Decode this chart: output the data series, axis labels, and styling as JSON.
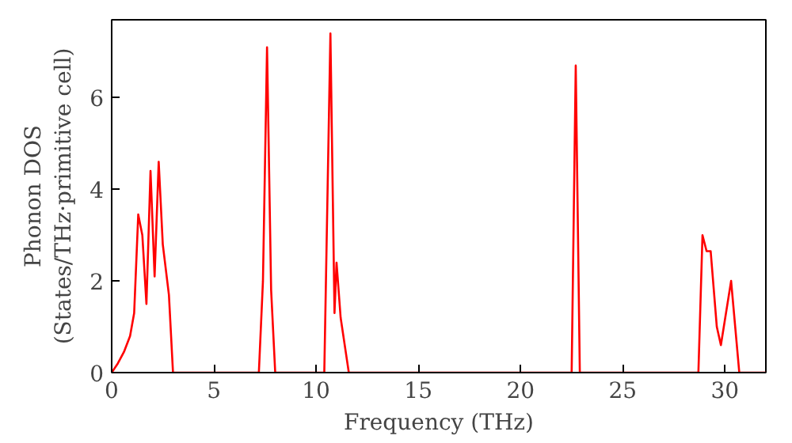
{
  "chart_data": {
    "type": "line",
    "xlabel": "Frequency (THz)",
    "ylabel": "Phonon DOS\n(States/THz·primitive cell)",
    "xlim": [
      0,
      32
    ],
    "ylim": [
      0,
      7.7
    ],
    "xticks": [
      0,
      5,
      10,
      15,
      20,
      25,
      30
    ],
    "yticks": [
      0,
      2,
      4,
      6
    ],
    "grid": false,
    "series": [
      {
        "color": "#ff0000",
        "x": [
          0,
          0.3,
          0.6,
          0.9,
          1.1,
          1.3,
          1.5,
          1.7,
          1.9,
          2.1,
          2.3,
          2.5,
          2.8,
          3.0,
          7.2,
          7.4,
          7.6,
          7.8,
          8.0,
          10.4,
          10.7,
          10.9,
          11.0,
          11.2,
          11.6,
          22.5,
          22.7,
          22.9,
          28.7,
          28.9,
          29.1,
          29.3,
          29.6,
          29.8,
          30.3,
          30.7,
          32
        ],
        "values": [
          0,
          0.2,
          0.45,
          0.8,
          1.3,
          3.45,
          3.0,
          1.5,
          4.4,
          2.1,
          4.6,
          2.8,
          1.7,
          0,
          0,
          2.0,
          7.1,
          1.8,
          0,
          0,
          7.4,
          1.3,
          2.4,
          1.2,
          0,
          0,
          6.7,
          0,
          0,
          3.0,
          2.65,
          2.65,
          1.0,
          0.6,
          2.0,
          0,
          0
        ]
      }
    ]
  }
}
